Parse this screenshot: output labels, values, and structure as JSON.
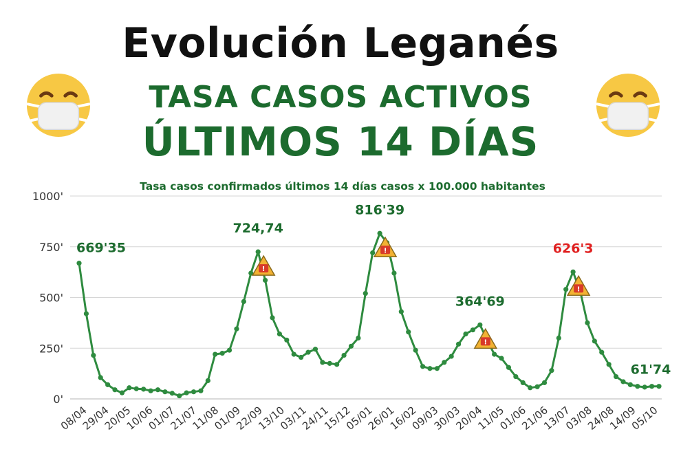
{
  "header": {
    "title": "Evolución Leganés",
    "subtitle_1": "TASA CASOS ACTIVOS",
    "subtitle_2": "ÚLTIMOS 14 DÍAS"
  },
  "icons": {
    "left": "face-with-medical-mask-icon",
    "right": "face-with-medical-mask-icon",
    "marker": "warning-triangle-icon"
  },
  "colors": {
    "title": "#111111",
    "accent_green": "#1c6b2e",
    "line": "#2e8b3f",
    "warning_label": "#e02020",
    "triangle": "#f2b233",
    "grid": "#d6d6d6"
  },
  "chart_data": {
    "type": "line",
    "title": "Tasa casos confirmados últimos 14 días  casos x 100.000 habitantes",
    "ylim": [
      0,
      1000
    ],
    "y_ticks": [
      "0'",
      "250'",
      "500'",
      "750'",
      "1000'"
    ],
    "y_tick_values": [
      0,
      250,
      500,
      750,
      1000
    ],
    "grid": true,
    "x_tick_labels": [
      "08/04",
      "29/04",
      "20/05",
      "10/06",
      "01/07",
      "21/07",
      "11/08",
      "01/09",
      "22/09",
      "13/10",
      "03/11",
      "24/11",
      "15/12",
      "05/01",
      "26/01",
      "16/02",
      "09/03",
      "30/03",
      "20/04",
      "11/05",
      "01/06",
      "21/06",
      "13/07",
      "03/08",
      "24/08",
      "14/09",
      "05/10"
    ],
    "series": [
      {
        "values": [
          669,
          420,
          215,
          105,
          70,
          45,
          30,
          55,
          50,
          48,
          40,
          45,
          35,
          28,
          15,
          30,
          35,
          40,
          90,
          220,
          225,
          240,
          345,
          480,
          620,
          725,
          585,
          400,
          320,
          290,
          220,
          205,
          230,
          245,
          180,
          175,
          170,
          215,
          260,
          300,
          520,
          720,
          816,
          770,
          620,
          430,
          330,
          240,
          160,
          150,
          150,
          180,
          210,
          270,
          320,
          340,
          365,
          290,
          220,
          200,
          155,
          110,
          80,
          55,
          60,
          80,
          140,
          300,
          540,
          626,
          530,
          375,
          285,
          230,
          170,
          110,
          85,
          70,
          62,
          58,
          62,
          62
        ]
      }
    ],
    "annotations": [
      {
        "label": "669'35",
        "value": 669.35,
        "warning": false,
        "label_color": "green"
      },
      {
        "label": "724,74",
        "value": 724.74,
        "warning": true,
        "label_color": "green"
      },
      {
        "label": "816'39",
        "value": 816.39,
        "warning": true,
        "label_color": "green"
      },
      {
        "label": "364'69",
        "value": 364.69,
        "warning": true,
        "label_color": "green"
      },
      {
        "label": "626'3",
        "value": 626.3,
        "warning": true,
        "label_color": "red"
      },
      {
        "label": "61'74",
        "value": 61.74,
        "warning": false,
        "label_color": "green"
      }
    ]
  }
}
